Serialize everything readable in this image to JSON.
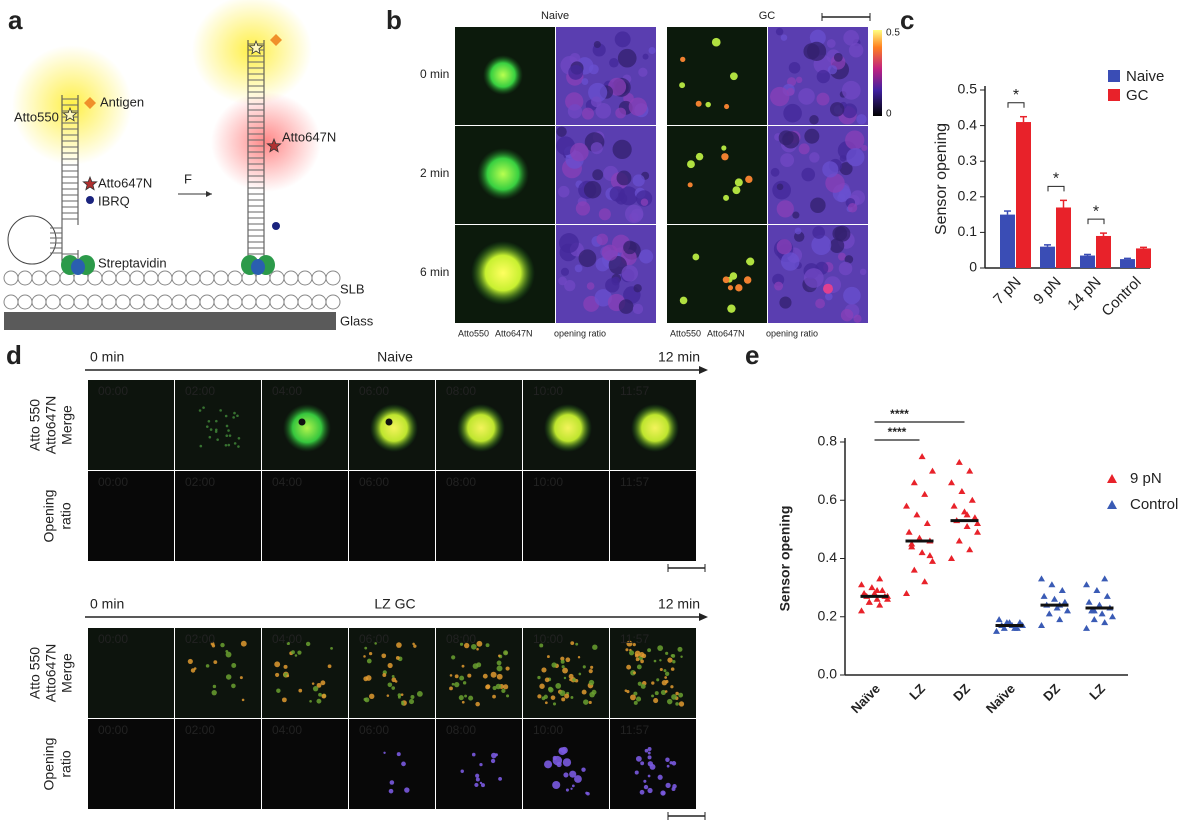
{
  "panel_labels": [
    "a",
    "b",
    "c",
    "d",
    "e"
  ],
  "diagram_a": {
    "atto550": "Atto550",
    "antigen": "Antigen",
    "atto647n": "Atto647N",
    "ibrq": "IBRQ",
    "force": "F",
    "streptavidin": "Streptavidin",
    "slb": "SLB",
    "glass": "Glass",
    "atto647n_open": "Atto647N"
  },
  "panel_b": {
    "columns": [
      "Naive",
      "GC"
    ],
    "times": [
      "0 min",
      "2 min",
      "6 min"
    ],
    "colorbar_ticks": [
      0.5,
      0
    ],
    "channel_labels": [
      "Atto550",
      "Atto647N"
    ],
    "ratio_label": "opening ratio"
  },
  "panel_d": {
    "start": "0 min",
    "end": "12 min",
    "times": [
      "00:00",
      "02:00",
      "04:00",
      "06:00",
      "08:00",
      "10:00",
      "11:57"
    ],
    "sequences": [
      {
        "title": "Naive",
        "channel_labels": [
          "Atto 550",
          "Atto647N",
          "Merge"
        ],
        "ratio_labels": [
          "Opening",
          "ratio"
        ]
      },
      {
        "title": "LZ GC",
        "channel_labels": [
          "Atto 550",
          "Atto647N",
          "Merge"
        ],
        "ratio_labels": [
          "Opening",
          "ratio"
        ]
      }
    ]
  },
  "chart_data": [
    {
      "type": "bar",
      "ylabel": "Sensor opening",
      "categories": [
        "7 pN",
        "9 pN",
        "14 pN",
        "Control"
      ],
      "series": [
        {
          "name": "Naive",
          "color": "#3a4db5",
          "values": [
            0.15,
            0.06,
            0.035,
            0.025
          ],
          "errors": [
            0.01,
            0.005,
            0.003,
            0.002
          ]
        },
        {
          "name": "GC",
          "color": "#e8222a",
          "values": [
            0.41,
            0.17,
            0.09,
            0.055
          ],
          "errors": [
            0.015,
            0.02,
            0.008,
            0.003
          ]
        }
      ],
      "annotations": [
        "*",
        "*",
        "*"
      ],
      "ylim": [
        0,
        0.5
      ],
      "yticks": [
        0,
        0.1,
        0.2,
        0.3,
        0.4,
        0.5
      ],
      "legend": "upper right"
    },
    {
      "type": "dot",
      "ylabel": "Sensor opening",
      "categories": [
        "Naïve",
        "LZ",
        "DZ",
        "Naïve",
        "DZ",
        "LZ"
      ],
      "series": [
        {
          "name": "9 pN",
          "color": "#e8222a",
          "points": [
            [
              0.22,
              0.24,
              0.25,
              0.26,
              0.26,
              0.27,
              0.27,
              0.28,
              0.28,
              0.29,
              0.3,
              0.31,
              0.33,
              0.25,
              0.27,
              0.29
            ],
            [
              0.28,
              0.32,
              0.36,
              0.39,
              0.42,
              0.44,
              0.46,
              0.47,
              0.49,
              0.52,
              0.55,
              0.58,
              0.62,
              0.66,
              0.7,
              0.75,
              0.45,
              0.41
            ],
            [
              0.4,
              0.43,
              0.46,
              0.49,
              0.51,
              0.53,
              0.54,
              0.56,
              0.58,
              0.6,
              0.63,
              0.66,
              0.7,
              0.73,
              0.52,
              0.55
            ],
            null,
            null,
            null
          ],
          "means": [
            0.27,
            0.46,
            0.53,
            null,
            null,
            null
          ]
        },
        {
          "name": "Control",
          "color": "#3a5bb5",
          "points": [
            null,
            null,
            null,
            [
              0.15,
              0.16,
              0.16,
              0.17,
              0.17,
              0.17,
              0.18,
              0.18,
              0.19,
              0.16,
              0.18
            ],
            [
              0.17,
              0.19,
              0.21,
              0.22,
              0.23,
              0.24,
              0.25,
              0.26,
              0.27,
              0.29,
              0.31,
              0.33,
              0.24
            ],
            [
              0.16,
              0.18,
              0.19,
              0.2,
              0.21,
              0.22,
              0.23,
              0.24,
              0.25,
              0.27,
              0.29,
              0.31,
              0.33,
              0.22
            ]
          ],
          "means": [
            null,
            null,
            null,
            0.17,
            0.24,
            0.23
          ]
        }
      ],
      "annotations": [
        "****",
        "****"
      ],
      "ylim": [
        0,
        0.8
      ],
      "yticks": [
        {
          "value": 0,
          "label": "0.0"
        },
        0.2,
        0.4,
        0.6,
        0.8
      ],
      "legend": "upper right"
    }
  ]
}
